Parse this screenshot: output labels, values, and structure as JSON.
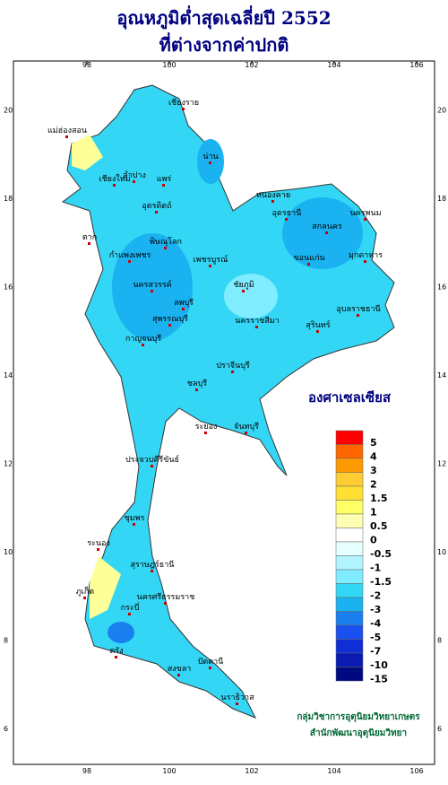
{
  "header": {
    "title": "อุณหภูมิต่ำสุดเฉลี่ยปี  2552",
    "subtitle": "ที่ต่างจากค่าปกติ"
  },
  "axes": {
    "lon_ticks": [
      "98",
      "100",
      "102",
      "104",
      "106"
    ],
    "lat_ticks": [
      "20",
      "18",
      "16",
      "14",
      "12",
      "10",
      "8",
      "6"
    ]
  },
  "legend": {
    "unit": "องศาเซลเซียส",
    "labels": [
      "5",
      "4",
      "3",
      "2",
      "1.5",
      "1",
      "0.5",
      "0",
      "-0.5",
      "-1",
      "-1.5",
      "-2",
      "-3",
      "-4",
      "-5",
      "-7",
      "-10",
      "-15"
    ],
    "colors": [
      "#ff0000",
      "#ff6600",
      "#ff9900",
      "#ffcc33",
      "#ffe033",
      "#ffff66",
      "#ffffb3",
      "#ffffff",
      "#e6ffff",
      "#b3f5ff",
      "#80ecff",
      "#33d6f5",
      "#1ab2f0",
      "#1a80f0",
      "#1a4ff0",
      "#0f2ed6",
      "#0a1ab3",
      "#000a80"
    ]
  },
  "provinces": [
    "เชียงราย",
    "เชียงใหม่",
    "แม่ฮ่องสอน",
    "ลำปาง",
    "น่าน",
    "แพร่",
    "อุตรดิตถ์",
    "ตาก",
    "พิษณุโลก",
    "กำแพงเพชร",
    "เพชรบูรณ์",
    "นครสวรรค์",
    "หนองคาย",
    "อุดรธานี",
    "สกลนคร",
    "นครพนม",
    "มุกดาหาร",
    "ขอนแก่น",
    "ชัยภูมิ",
    "นครราชสีมา",
    "สุรินทร์",
    "อุบลราชธานี",
    "กาญจนบุรี",
    "สุพรรณบุรี",
    "ลพบุรี",
    "ปราจีนบุรี",
    "ชลบุรี",
    "ระยอง",
    "จันทบุรี",
    "ประจวบคีรีขันธ์",
    "ชุมพร",
    "ระนอง",
    "สุราษฎร์ธานี",
    "นครศรีธรรมราช",
    "ภูเก็ต",
    "กระบี่",
    "ตรัง",
    "สงขลา",
    "ปัตตานี",
    "นราธิวาส"
  ],
  "footer": {
    "line1": "กลุ่มวิชาการอุตุนิยมวิทยาเกษตร",
    "line2": "สำนักพัฒนาอุตุนิยมวิทยา"
  }
}
